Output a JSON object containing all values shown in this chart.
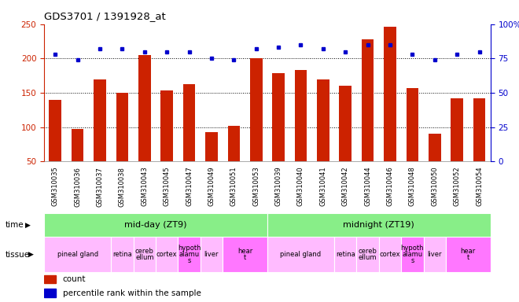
{
  "title": "GDS3701 / 1391928_at",
  "samples": [
    "GSM310035",
    "GSM310036",
    "GSM310037",
    "GSM310038",
    "GSM310043",
    "GSM310045",
    "GSM310047",
    "GSM310049",
    "GSM310051",
    "GSM310053",
    "GSM310039",
    "GSM310040",
    "GSM310041",
    "GSM310042",
    "GSM310044",
    "GSM310046",
    "GSM310048",
    "GSM310050",
    "GSM310052",
    "GSM310054"
  ],
  "counts": [
    140,
    97,
    170,
    150,
    205,
    153,
    163,
    93,
    102,
    200,
    179,
    183,
    170,
    160,
    228,
    246,
    157,
    90,
    142,
    142
  ],
  "percentile": [
    78,
    74,
    82,
    82,
    80,
    80,
    80,
    75,
    74,
    82,
    83,
    85,
    82,
    80,
    85,
    85,
    78,
    74,
    78,
    80
  ],
  "bar_color": "#cc2200",
  "dot_color": "#0000cc",
  "ylim_left": [
    50,
    250
  ],
  "ylim_right": [
    0,
    100
  ],
  "yticks_left": [
    50,
    100,
    150,
    200,
    250
  ],
  "yticks_right": [
    0,
    25,
    50,
    75,
    100
  ],
  "yticklabels_right": [
    "0",
    "25",
    "50",
    "75",
    "100%"
  ],
  "hlines": [
    100,
    150,
    200
  ],
  "time_groups": [
    {
      "label": "mid-day (ZT9)",
      "start": 0,
      "end": 10,
      "color": "#88ee88"
    },
    {
      "label": "midnight (ZT19)",
      "start": 10,
      "end": 20,
      "color": "#88ee88"
    }
  ],
  "tissue_groups": [
    {
      "label": "pineal gland",
      "start": 0,
      "end": 3,
      "color": "#ffbbff"
    },
    {
      "label": "retina",
      "start": 3,
      "end": 4,
      "color": "#ffbbff"
    },
    {
      "label": "cereb\nellum",
      "start": 4,
      "end": 5,
      "color": "#ffbbff"
    },
    {
      "label": "cortex",
      "start": 5,
      "end": 6,
      "color": "#ffbbff"
    },
    {
      "label": "hypoth\nalamu\ns",
      "start": 6,
      "end": 7,
      "color": "#ff77ff"
    },
    {
      "label": "liver",
      "start": 7,
      "end": 8,
      "color": "#ffbbff"
    },
    {
      "label": "hear\nt",
      "start": 8,
      "end": 10,
      "color": "#ff77ff"
    },
    {
      "label": "pineal gland",
      "start": 10,
      "end": 13,
      "color": "#ffbbff"
    },
    {
      "label": "retina",
      "start": 13,
      "end": 14,
      "color": "#ffbbff"
    },
    {
      "label": "cereb\nellum",
      "start": 14,
      "end": 15,
      "color": "#ffbbff"
    },
    {
      "label": "cortex",
      "start": 15,
      "end": 16,
      "color": "#ffbbff"
    },
    {
      "label": "hypoth\nalamu\ns",
      "start": 16,
      "end": 17,
      "color": "#ff77ff"
    },
    {
      "label": "liver",
      "start": 17,
      "end": 18,
      "color": "#ffbbff"
    },
    {
      "label": "hear\nt",
      "start": 18,
      "end": 20,
      "color": "#ff77ff"
    }
  ],
  "legend_count_label": "count",
  "legend_pct_label": "percentile rank within the sample",
  "time_label": "time",
  "tissue_label": "tissue",
  "bg_color": "#ffffff"
}
